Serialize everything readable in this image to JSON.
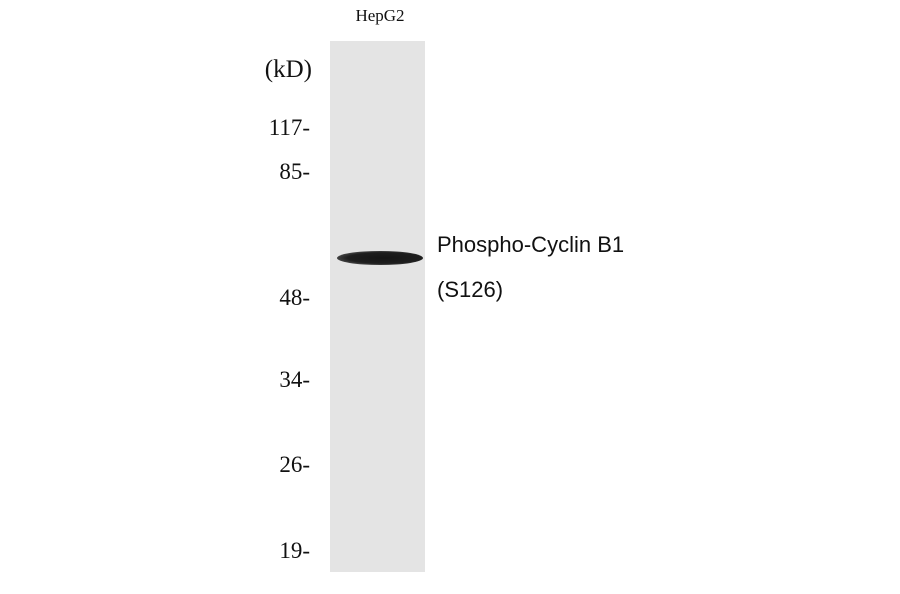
{
  "lane_label": "HepG2",
  "unit_label": "(kD)",
  "markers": [
    "117-",
    "85-",
    "48-",
    "34-",
    "26-",
    "19-"
  ],
  "target": {
    "line1": "Phospho-Cyclin B1",
    "line2": "(S126)"
  }
}
